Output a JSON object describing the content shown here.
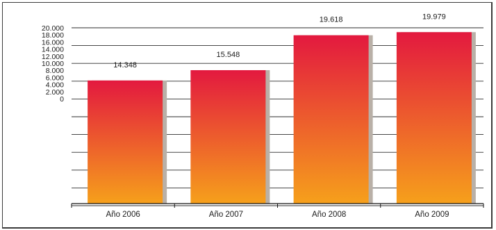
{
  "chart_data": {
    "type": "bar",
    "categories": [
      "Año 2006",
      "Año 2007",
      "Año 2008",
      "Año 2009"
    ],
    "values": [
      14348,
      15548,
      19618,
      19979
    ],
    "value_labels": [
      "14.348",
      "15.548",
      "19.618",
      "19.979"
    ],
    "y_ticks": [
      "20.000",
      "18.000",
      "16.000",
      "14.000",
      "12.000",
      "10.000",
      "8.000",
      "6.000",
      "4.000",
      "2.000",
      "0"
    ],
    "title": "",
    "xlabel": "",
    "ylabel": "",
    "grid": true,
    "legend": "none",
    "colors": {
      "bar_top": "#e3193f",
      "bar_bottom": "#f6a01b",
      "shadow": "#b9b0a7",
      "grid": "#2b2b2b",
      "frame": "#3a3a3a"
    }
  }
}
